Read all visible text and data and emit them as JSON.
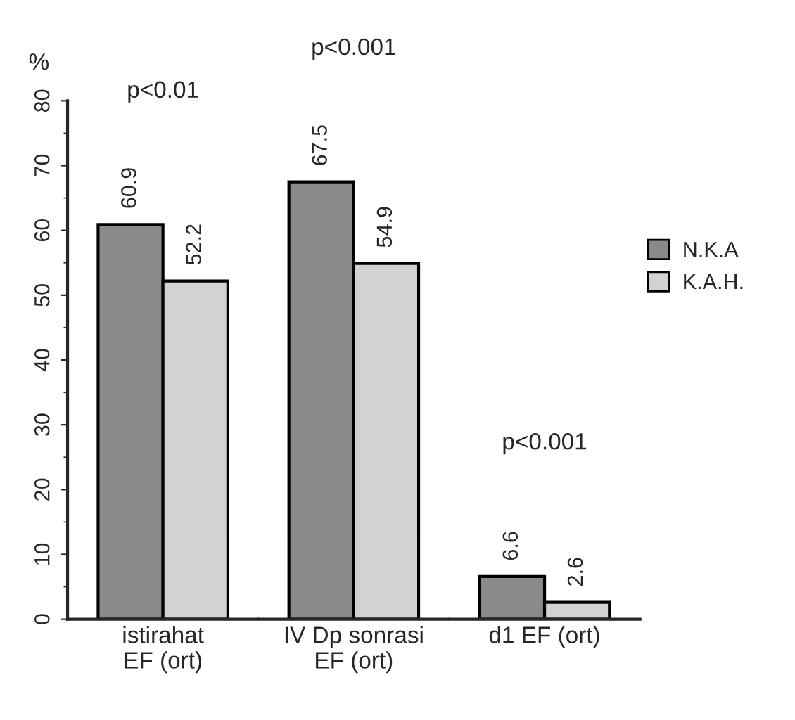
{
  "chart_data": {
    "type": "bar",
    "ylabel": "%",
    "categories": [
      "istirahat\nEF (ort)",
      "IV Dp sonrasi\nEF (ort)",
      "d1 EF (ort)"
    ],
    "series": [
      {
        "name": "N.K.A",
        "color": "#8a8a8a",
        "values": [
          60.9,
          67.5,
          6.6
        ]
      },
      {
        "name": "K.A.H.",
        "color": "#d2d2d2",
        "values": [
          52.2,
          54.9,
          2.6
        ]
      }
    ],
    "ylim": [
      0,
      80
    ],
    "yticks": [
      0,
      10,
      20,
      30,
      40,
      50,
      60,
      70,
      80
    ],
    "data_labels": true,
    "legend": "right",
    "grid": false,
    "annotations": [
      "p<0.01",
      "p<0.001",
      "p<0.001"
    ]
  }
}
